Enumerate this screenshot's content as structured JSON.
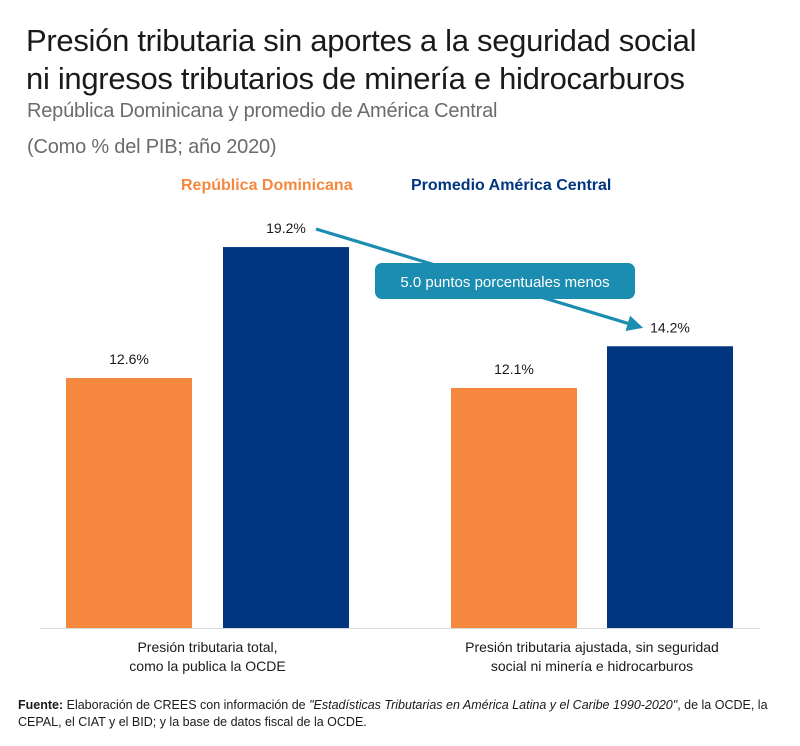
{
  "header": {
    "title_line1": "Presión tributaria sin aportes a la seguridad social",
    "title_line2": "ni ingresos tributarios de minería e hidrocarburos",
    "subtitle": "República Dominicana y promedio de América Central",
    "units": "(Como % del PIB; año 2020)"
  },
  "chart_data": {
    "type": "bar",
    "title": "Presión tributaria sin aportes a la seguridad social ni ingresos tributarios de minería e hidrocarburos",
    "subtitle": "República Dominicana y promedio de América Central (Como % del PIB; año 2020)",
    "categories": [
      [
        "Presión tributaria total,",
        "como la publica la OCDE"
      ],
      [
        "Presión tributaria ajustada, sin seguridad",
        "social ni minería e hidrocarburos"
      ]
    ],
    "series": [
      {
        "name": "República Dominicana",
        "color": "#F5873F",
        "values": [
          12.6,
          12.1
        ],
        "labels": [
          "12.6%",
          "12.1%"
        ]
      },
      {
        "name": "Promedio América Central",
        "color": "#003680",
        "values": [
          19.2,
          14.2
        ],
        "labels": [
          "19.2%",
          "14.2%"
        ]
      }
    ],
    "xlabel": "",
    "ylabel": "% del PIB",
    "ylim": [
      0,
      19.2
    ],
    "grid": false,
    "legend_position": "top-center",
    "annotation": {
      "text": "5.0 puntos porcentuales menos",
      "from": "19.2%",
      "to": "14.2%",
      "color": "#1A8DB0"
    }
  },
  "footnote": {
    "bold_label": "Fuente:",
    "text_before": " Elaboración de CREES con información de ",
    "italic_source": "\"Estadísticas Tributarias en América Latina y el Caribe 1990-2020\"",
    "text_after": ", de la OCDE, la CEPAL, el CIAT y el BID; y la base de datos fiscal de la OCDE."
  }
}
